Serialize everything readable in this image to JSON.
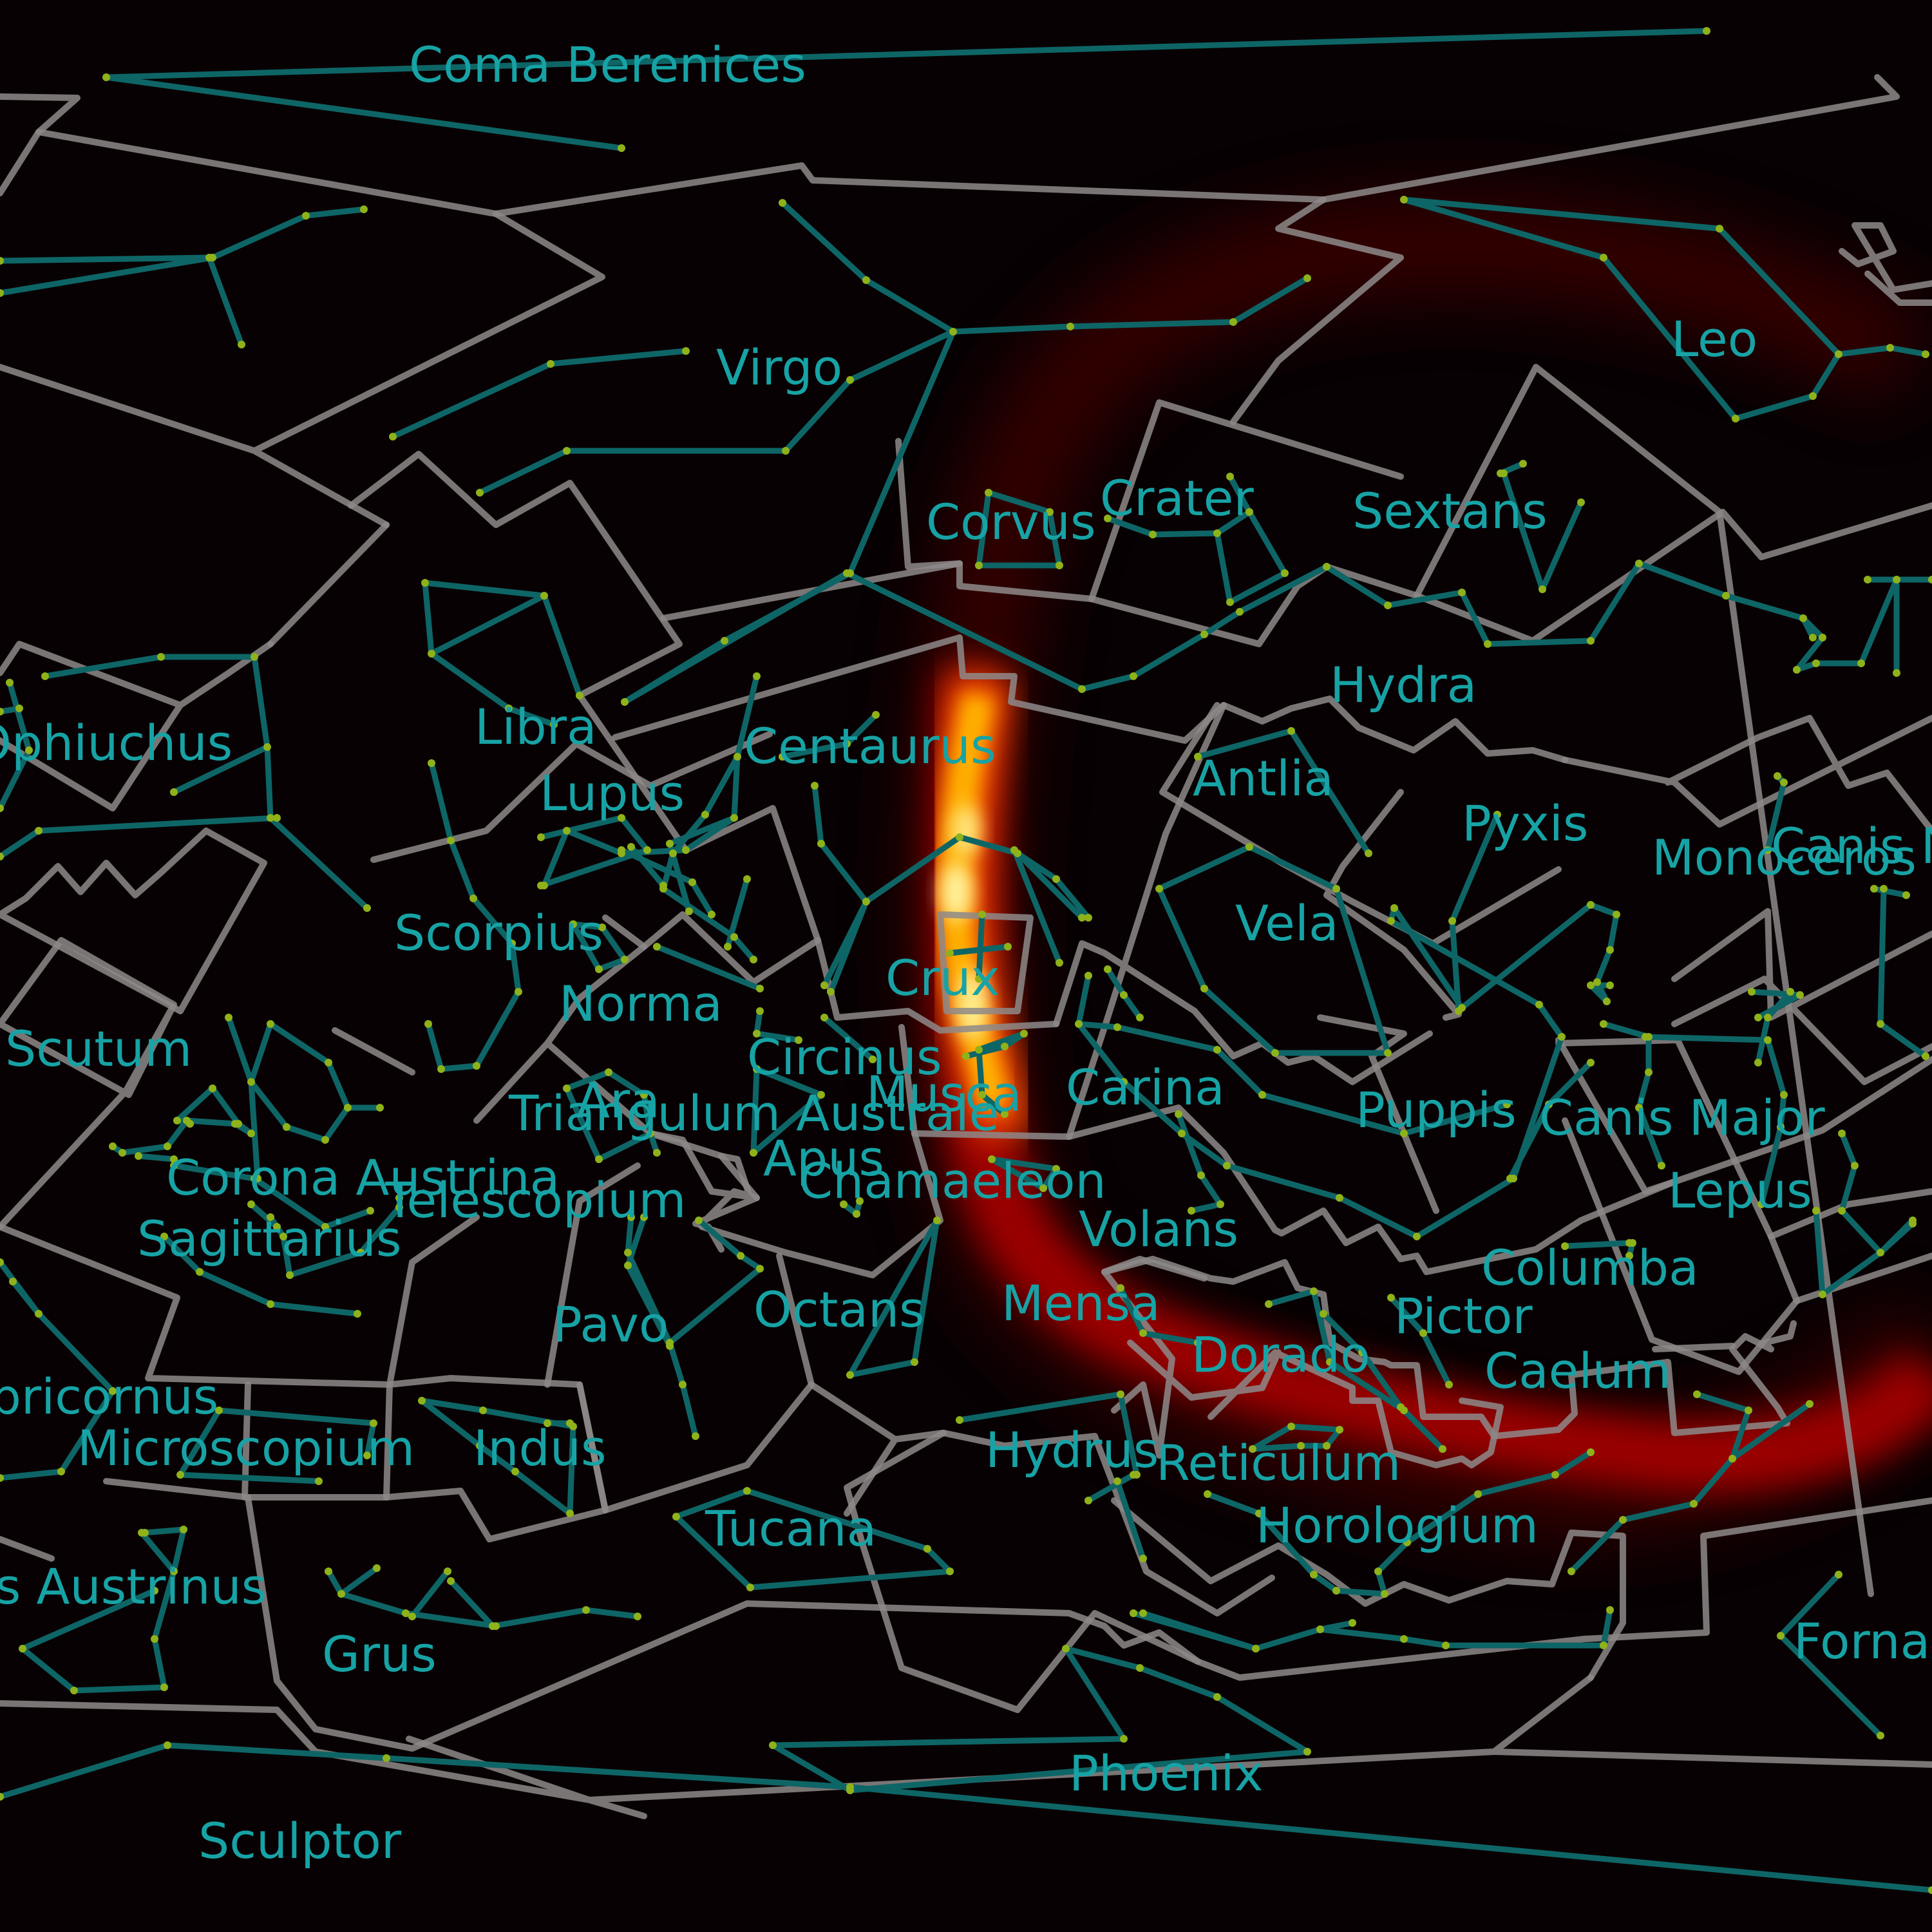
{
  "map": {
    "background": "#080103",
    "boundary_color": "#8e8a8a",
    "stick_figure_color": "#0e6566",
    "label_color": "#17a3a5",
    "star_color": "#8fb21a",
    "heat_colors": [
      "#6a0000",
      "#c80000",
      "#ff4400",
      "#ffa000",
      "#ffe060"
    ]
  },
  "labels": {
    "coma_berenices": "Coma Berenices",
    "virgo": "Virgo",
    "leo": "Leo",
    "corvus": "Corvus",
    "crater": "Crater",
    "sextans": "Sextans",
    "hydra": "Hydra",
    "libra": "Libra",
    "ophiuchus": "Ophiuchus",
    "centaurus": "Centaurus",
    "lupus": "Lupus",
    "antlia": "Antlia",
    "pyxis": "Pyxis",
    "canis_minor": "Canis Minor",
    "monoceros": "Monoceros",
    "vela": "Vela",
    "scorpius": "Scorpius",
    "crux": "Crux",
    "norma": "Norma",
    "scutum": "Scutum",
    "circinus": "Circinus",
    "carina": "Carina",
    "ara": "Ara",
    "musca": "Musca",
    "triangulum_australe": "Triangulum Australe",
    "puppis": "Puppis",
    "canis_major": "Canis Major",
    "apus": "Apus",
    "corona_australis": "Corona Austrina",
    "chamaeleon": "Chamaeleon",
    "telescopium": "Telescopium",
    "lepus": "Lepus",
    "sagittarius": "Sagittarius",
    "volans": "Volans",
    "columba": "Columba",
    "pictor": "Pictor",
    "mensa": "Mensa",
    "octans": "Octans",
    "pavo": "Pavo",
    "dorado": "Dorado",
    "caelum": "Caelum",
    "capricornus": "Capricornus",
    "microscopium": "Microscopium",
    "indus": "Indus",
    "hydrus": "Hydrus",
    "reticulum": "Reticulum",
    "horologium": "Horologium",
    "tucana": "Tucana",
    "piscis_austrinus": "Piscis Austrinus",
    "grus": "Grus",
    "fornax": "Fornax",
    "phoenix": "Phoenix",
    "sculptor": "Sculptor"
  }
}
